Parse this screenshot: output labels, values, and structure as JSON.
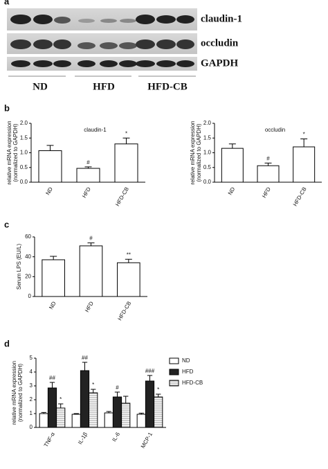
{
  "panel_a": {
    "panel": "a",
    "blot_labels": [
      "claudin-1",
      "occludin",
      "GAPDH"
    ],
    "groups": [
      "ND",
      "HFD",
      "HFD-CB"
    ]
  },
  "chart_data": [
    {
      "type": "bar",
      "panel": "b",
      "title": "claudin-1",
      "ylabel": [
        "relative mRNA expression",
        "(normalized to GAPDH)"
      ],
      "categories": [
        "ND",
        "HFD",
        "HFD-CB"
      ],
      "values": [
        1.07,
        0.47,
        1.3
      ],
      "errors": [
        0.18,
        0.05,
        0.2
      ],
      "annotations": [
        null,
        "#",
        "*"
      ],
      "color": "#ffffff",
      "ylim": [
        0,
        2
      ],
      "yticks": [
        {
          "value": 0,
          "label": "0.0"
        },
        0.5,
        {
          "value": 1,
          "label": "1.0"
        },
        1.5,
        {
          "value": 2,
          "label": "2.0"
        }
      ]
    },
    {
      "type": "bar",
      "title": "occludin",
      "ylabel": [
        "relative mRNA expression",
        "(normalized to GAPDH)"
      ],
      "categories": [
        "ND",
        "HFD",
        "HFD-CB"
      ],
      "values": [
        1.15,
        0.56,
        1.2
      ],
      "errors": [
        0.15,
        0.09,
        0.27
      ],
      "annotations": [
        null,
        "#",
        "*"
      ],
      "color": "#ffffff",
      "ylim": [
        0,
        2
      ],
      "yticks": [
        {
          "value": 0,
          "label": "0.0"
        },
        0.5,
        {
          "value": 1,
          "label": "1.0"
        },
        1.5,
        {
          "value": 2,
          "label": "2.0"
        }
      ]
    },
    {
      "type": "bar",
      "panel": "c",
      "ylabel": [
        "Serum LPS (EU/L)"
      ],
      "categories": [
        "ND",
        "HFD",
        "HFD-CB"
      ],
      "values": [
        37,
        51,
        34
      ],
      "errors": [
        3.5,
        3,
        3.5
      ],
      "annotations": [
        null,
        "#",
        "**"
      ],
      "color": "#ffffff",
      "ylim": [
        0,
        60
      ],
      "yticks": [
        0,
        20,
        40,
        60
      ]
    },
    {
      "type": "bar",
      "panel": "d",
      "ylabel": [
        "relative mRNA expression",
        "(normalized to GAPDH)"
      ],
      "categories": [
        "TNF-α",
        "IL-1β",
        "IL-6",
        "MCP-1"
      ],
      "series": [
        {
          "name": "ND",
          "color": "#ffffff",
          "values": [
            1.0,
            0.95,
            1.05,
            0.95
          ],
          "errors": [
            0.08,
            0.05,
            0.1,
            0.08
          ],
          "annotations": [
            null,
            null,
            null,
            null
          ]
        },
        {
          "name": "HFD",
          "color": "#222222",
          "values": [
            2.85,
            4.1,
            2.2,
            3.35
          ],
          "errors": [
            0.4,
            0.6,
            0.35,
            0.4
          ],
          "annotations": [
            "##",
            "##",
            "#",
            "###"
          ]
        },
        {
          "name": "HFD-CB",
          "color": "#c8c8c8",
          "hatch": true,
          "values": [
            1.4,
            2.5,
            1.75,
            2.2
          ],
          "errors": [
            0.3,
            0.25,
            0.5,
            0.2
          ],
          "annotations": [
            "*",
            "*",
            null,
            "*"
          ]
        }
      ],
      "ylim": [
        0,
        5
      ],
      "yticks": [
        0,
        1,
        2,
        3,
        4,
        5
      ],
      "legend": "upper right"
    }
  ]
}
